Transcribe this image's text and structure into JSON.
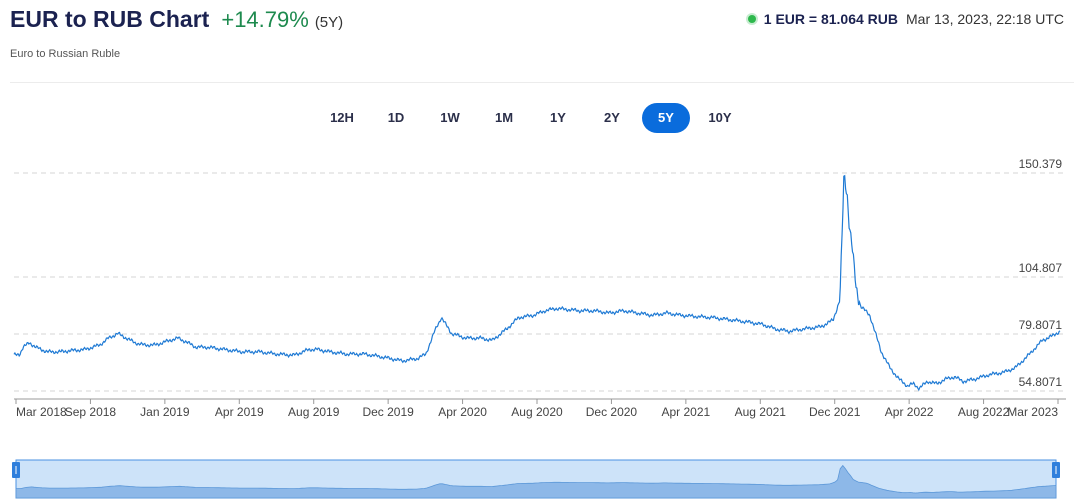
{
  "header": {
    "title": "EUR to RUB Chart",
    "change": "+14.79%",
    "period": "(5Y)",
    "subtitle": "Euro to Russian Ruble",
    "rate": "1 EUR = 81.064 RUB",
    "timestamp": "Mar 13, 2023, 22:18 UTC"
  },
  "tabs": [
    {
      "label": "12H",
      "active": false
    },
    {
      "label": "1D",
      "active": false
    },
    {
      "label": "1W",
      "active": false
    },
    {
      "label": "1M",
      "active": false
    },
    {
      "label": "1Y",
      "active": false
    },
    {
      "label": "2Y",
      "active": false
    },
    {
      "label": "5Y",
      "active": true
    },
    {
      "label": "10Y",
      "active": false
    }
  ],
  "colors": {
    "line": "#1f7ad4",
    "accent": "#0a6cdc",
    "positive": "#1d8a4e",
    "navigator_fill": "#cde3f9"
  },
  "chart_data": {
    "type": "line",
    "title": "EUR to RUB Chart",
    "subtitle": "Euro to Russian Ruble",
    "x_ticks": [
      "Mar 2018",
      "Sep 2018",
      "Jan 2019",
      "Apr 2019",
      "Aug 2019",
      "Dec 2019",
      "Apr 2020",
      "Aug 2020",
      "Dec 2020",
      "Apr 2021",
      "Aug 2021",
      "Dec 2021",
      "Apr 2022",
      "Aug 2022",
      "Mar 2023"
    ],
    "y_ticks": [
      150.379,
      104.807,
      79.8071,
      54.8071
    ],
    "grid": true,
    "series": [
      {
        "x": [
          "2018-03-13",
          "2018-03-23",
          "2018-03-29",
          "2018-04-09",
          "2018-04-20",
          "2018-05-10",
          "2018-06-01",
          "2018-06-20",
          "2018-07-15",
          "2018-08-10",
          "2018-08-25",
          "2018-09-10",
          "2018-09-25",
          "2018-10-10",
          "2018-10-25",
          "2018-11-15",
          "2018-12-10",
          "2018-12-25",
          "2019-01-10",
          "2019-01-25",
          "2019-02-15",
          "2019-03-15",
          "2019-04-15",
          "2019-05-15",
          "2019-06-15",
          "2019-07-15",
          "2019-08-10",
          "2019-08-25",
          "2019-09-15",
          "2019-10-15",
          "2019-11-15",
          "2019-12-10",
          "2019-12-31",
          "2020-01-20",
          "2020-02-15",
          "2020-03-01",
          "2020-03-18",
          "2020-03-28",
          "2020-04-15",
          "2020-05-10",
          "2020-06-05",
          "2020-06-25",
          "2020-07-20",
          "2020-08-10",
          "2020-09-05",
          "2020-09-25",
          "2020-10-15",
          "2020-11-05",
          "2020-11-25",
          "2020-12-20",
          "2021-01-15",
          "2021-02-10",
          "2021-03-05",
          "2021-04-01",
          "2021-04-25",
          "2021-05-20",
          "2021-06-15",
          "2021-07-15",
          "2021-08-15",
          "2021-09-15",
          "2021-10-10",
          "2021-11-01",
          "2021-11-25",
          "2021-12-20",
          "2022-01-20",
          "2022-02-10",
          "2022-02-22",
          "2022-03-01",
          "2022-03-07",
          "2022-03-10",
          "2022-03-15",
          "2022-03-22",
          "2022-03-30",
          "2022-04-07",
          "2022-04-15",
          "2022-04-25",
          "2022-05-05",
          "2022-05-20",
          "2022-06-05",
          "2022-06-20",
          "2022-06-30",
          "2022-07-10",
          "2022-07-25",
          "2022-08-10",
          "2022-08-25",
          "2022-09-10",
          "2022-09-25",
          "2022-10-15",
          "2022-11-10",
          "2022-12-05",
          "2022-12-25",
          "2023-01-15",
          "2023-02-10",
          "2023-02-28",
          "2023-03-13"
        ],
        "values": [
          70.5,
          71,
          74,
          76,
          74,
          72,
          72,
          72.5,
          73,
          75,
          78,
          80,
          78,
          76,
          75,
          75,
          77,
          78,
          76,
          74,
          74,
          73,
          72,
          72,
          71,
          70.5,
          73,
          73,
          72,
          71,
          71,
          70,
          69,
          68,
          69,
          71,
          82,
          87,
          80,
          78,
          78,
          77,
          82,
          87,
          88,
          90,
          91,
          90.5,
          90,
          90,
          89,
          90,
          89,
          88,
          89,
          88,
          87.5,
          87,
          86,
          85,
          84,
          82,
          81,
          82,
          83,
          86,
          95,
          150,
          140,
          128,
          118,
          100,
          92,
          90,
          88,
          80,
          72,
          65,
          60,
          57,
          58,
          56,
          59,
          58,
          60,
          61,
          59,
          60,
          62,
          63,
          65,
          70,
          77,
          79,
          81
        ]
      }
    ]
  },
  "navigator": {
    "x_ticks": []
  }
}
